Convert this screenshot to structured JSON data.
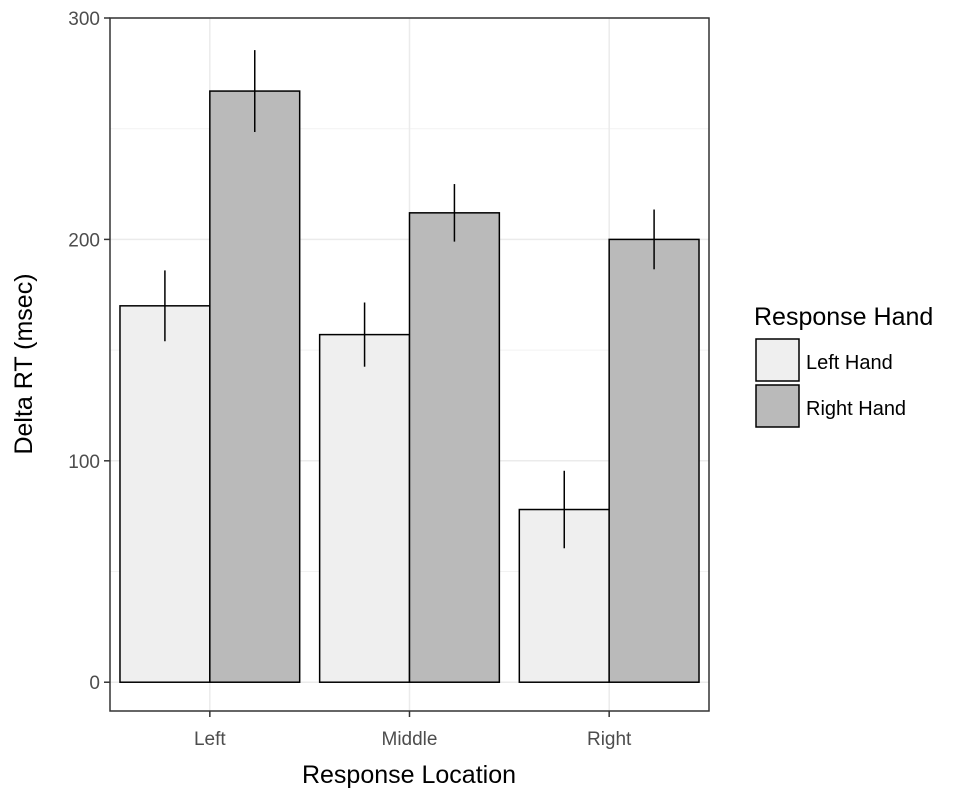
{
  "chart_data": {
    "type": "bar",
    "categories": [
      "Left",
      "Middle",
      "Right"
    ],
    "series": [
      {
        "name": "Left Hand",
        "values": [
          170,
          157,
          78
        ],
        "error": [
          16,
          14.5,
          17.5
        ],
        "color": "#efefef"
      },
      {
        "name": "Right Hand",
        "values": [
          267,
          212,
          200
        ],
        "error": [
          18.5,
          13,
          13.5
        ],
        "color": "#bababa"
      }
    ],
    "xlabel": "Response Location",
    "ylabel": "Delta RT (msec)",
    "ylim": [
      -13,
      300
    ],
    "yticks": [
      0,
      100,
      200,
      300
    ],
    "grid": true,
    "legend": {
      "title": "Response Hand",
      "position": "right"
    }
  }
}
